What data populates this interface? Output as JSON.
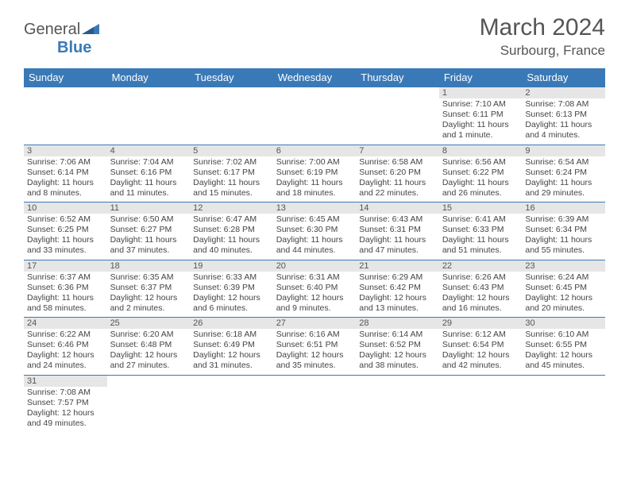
{
  "logo": {
    "text1": "General",
    "text2": "Blue"
  },
  "title": "March 2024",
  "location": "Surbourg, France",
  "dayNames": [
    "Sunday",
    "Monday",
    "Tuesday",
    "Wednesday",
    "Thursday",
    "Friday",
    "Saturday"
  ],
  "colors": {
    "headerBg": "#3a79b7",
    "dayNumBg": "#e6e6e6",
    "border": "#3a79b7",
    "text": "#444444",
    "background": "#ffffff"
  },
  "weeks": [
    [
      null,
      null,
      null,
      null,
      null,
      {
        "d": "1",
        "sr": "Sunrise: 7:10 AM",
        "ss": "Sunset: 6:11 PM",
        "dl": "Daylight: 11 hours and 1 minute."
      },
      {
        "d": "2",
        "sr": "Sunrise: 7:08 AM",
        "ss": "Sunset: 6:13 PM",
        "dl": "Daylight: 11 hours and 4 minutes."
      }
    ],
    [
      {
        "d": "3",
        "sr": "Sunrise: 7:06 AM",
        "ss": "Sunset: 6:14 PM",
        "dl": "Daylight: 11 hours and 8 minutes."
      },
      {
        "d": "4",
        "sr": "Sunrise: 7:04 AM",
        "ss": "Sunset: 6:16 PM",
        "dl": "Daylight: 11 hours and 11 minutes."
      },
      {
        "d": "5",
        "sr": "Sunrise: 7:02 AM",
        "ss": "Sunset: 6:17 PM",
        "dl": "Daylight: 11 hours and 15 minutes."
      },
      {
        "d": "6",
        "sr": "Sunrise: 7:00 AM",
        "ss": "Sunset: 6:19 PM",
        "dl": "Daylight: 11 hours and 18 minutes."
      },
      {
        "d": "7",
        "sr": "Sunrise: 6:58 AM",
        "ss": "Sunset: 6:20 PM",
        "dl": "Daylight: 11 hours and 22 minutes."
      },
      {
        "d": "8",
        "sr": "Sunrise: 6:56 AM",
        "ss": "Sunset: 6:22 PM",
        "dl": "Daylight: 11 hours and 26 minutes."
      },
      {
        "d": "9",
        "sr": "Sunrise: 6:54 AM",
        "ss": "Sunset: 6:24 PM",
        "dl": "Daylight: 11 hours and 29 minutes."
      }
    ],
    [
      {
        "d": "10",
        "sr": "Sunrise: 6:52 AM",
        "ss": "Sunset: 6:25 PM",
        "dl": "Daylight: 11 hours and 33 minutes."
      },
      {
        "d": "11",
        "sr": "Sunrise: 6:50 AM",
        "ss": "Sunset: 6:27 PM",
        "dl": "Daylight: 11 hours and 37 minutes."
      },
      {
        "d": "12",
        "sr": "Sunrise: 6:47 AM",
        "ss": "Sunset: 6:28 PM",
        "dl": "Daylight: 11 hours and 40 minutes."
      },
      {
        "d": "13",
        "sr": "Sunrise: 6:45 AM",
        "ss": "Sunset: 6:30 PM",
        "dl": "Daylight: 11 hours and 44 minutes."
      },
      {
        "d": "14",
        "sr": "Sunrise: 6:43 AM",
        "ss": "Sunset: 6:31 PM",
        "dl": "Daylight: 11 hours and 47 minutes."
      },
      {
        "d": "15",
        "sr": "Sunrise: 6:41 AM",
        "ss": "Sunset: 6:33 PM",
        "dl": "Daylight: 11 hours and 51 minutes."
      },
      {
        "d": "16",
        "sr": "Sunrise: 6:39 AM",
        "ss": "Sunset: 6:34 PM",
        "dl": "Daylight: 11 hours and 55 minutes."
      }
    ],
    [
      {
        "d": "17",
        "sr": "Sunrise: 6:37 AM",
        "ss": "Sunset: 6:36 PM",
        "dl": "Daylight: 11 hours and 58 minutes."
      },
      {
        "d": "18",
        "sr": "Sunrise: 6:35 AM",
        "ss": "Sunset: 6:37 PM",
        "dl": "Daylight: 12 hours and 2 minutes."
      },
      {
        "d": "19",
        "sr": "Sunrise: 6:33 AM",
        "ss": "Sunset: 6:39 PM",
        "dl": "Daylight: 12 hours and 6 minutes."
      },
      {
        "d": "20",
        "sr": "Sunrise: 6:31 AM",
        "ss": "Sunset: 6:40 PM",
        "dl": "Daylight: 12 hours and 9 minutes."
      },
      {
        "d": "21",
        "sr": "Sunrise: 6:29 AM",
        "ss": "Sunset: 6:42 PM",
        "dl": "Daylight: 12 hours and 13 minutes."
      },
      {
        "d": "22",
        "sr": "Sunrise: 6:26 AM",
        "ss": "Sunset: 6:43 PM",
        "dl": "Daylight: 12 hours and 16 minutes."
      },
      {
        "d": "23",
        "sr": "Sunrise: 6:24 AM",
        "ss": "Sunset: 6:45 PM",
        "dl": "Daylight: 12 hours and 20 minutes."
      }
    ],
    [
      {
        "d": "24",
        "sr": "Sunrise: 6:22 AM",
        "ss": "Sunset: 6:46 PM",
        "dl": "Daylight: 12 hours and 24 minutes."
      },
      {
        "d": "25",
        "sr": "Sunrise: 6:20 AM",
        "ss": "Sunset: 6:48 PM",
        "dl": "Daylight: 12 hours and 27 minutes."
      },
      {
        "d": "26",
        "sr": "Sunrise: 6:18 AM",
        "ss": "Sunset: 6:49 PM",
        "dl": "Daylight: 12 hours and 31 minutes."
      },
      {
        "d": "27",
        "sr": "Sunrise: 6:16 AM",
        "ss": "Sunset: 6:51 PM",
        "dl": "Daylight: 12 hours and 35 minutes."
      },
      {
        "d": "28",
        "sr": "Sunrise: 6:14 AM",
        "ss": "Sunset: 6:52 PM",
        "dl": "Daylight: 12 hours and 38 minutes."
      },
      {
        "d": "29",
        "sr": "Sunrise: 6:12 AM",
        "ss": "Sunset: 6:54 PM",
        "dl": "Daylight: 12 hours and 42 minutes."
      },
      {
        "d": "30",
        "sr": "Sunrise: 6:10 AM",
        "ss": "Sunset: 6:55 PM",
        "dl": "Daylight: 12 hours and 45 minutes."
      }
    ],
    [
      {
        "d": "31",
        "sr": "Sunrise: 7:08 AM",
        "ss": "Sunset: 7:57 PM",
        "dl": "Daylight: 12 hours and 49 minutes."
      },
      null,
      null,
      null,
      null,
      null,
      null
    ]
  ]
}
